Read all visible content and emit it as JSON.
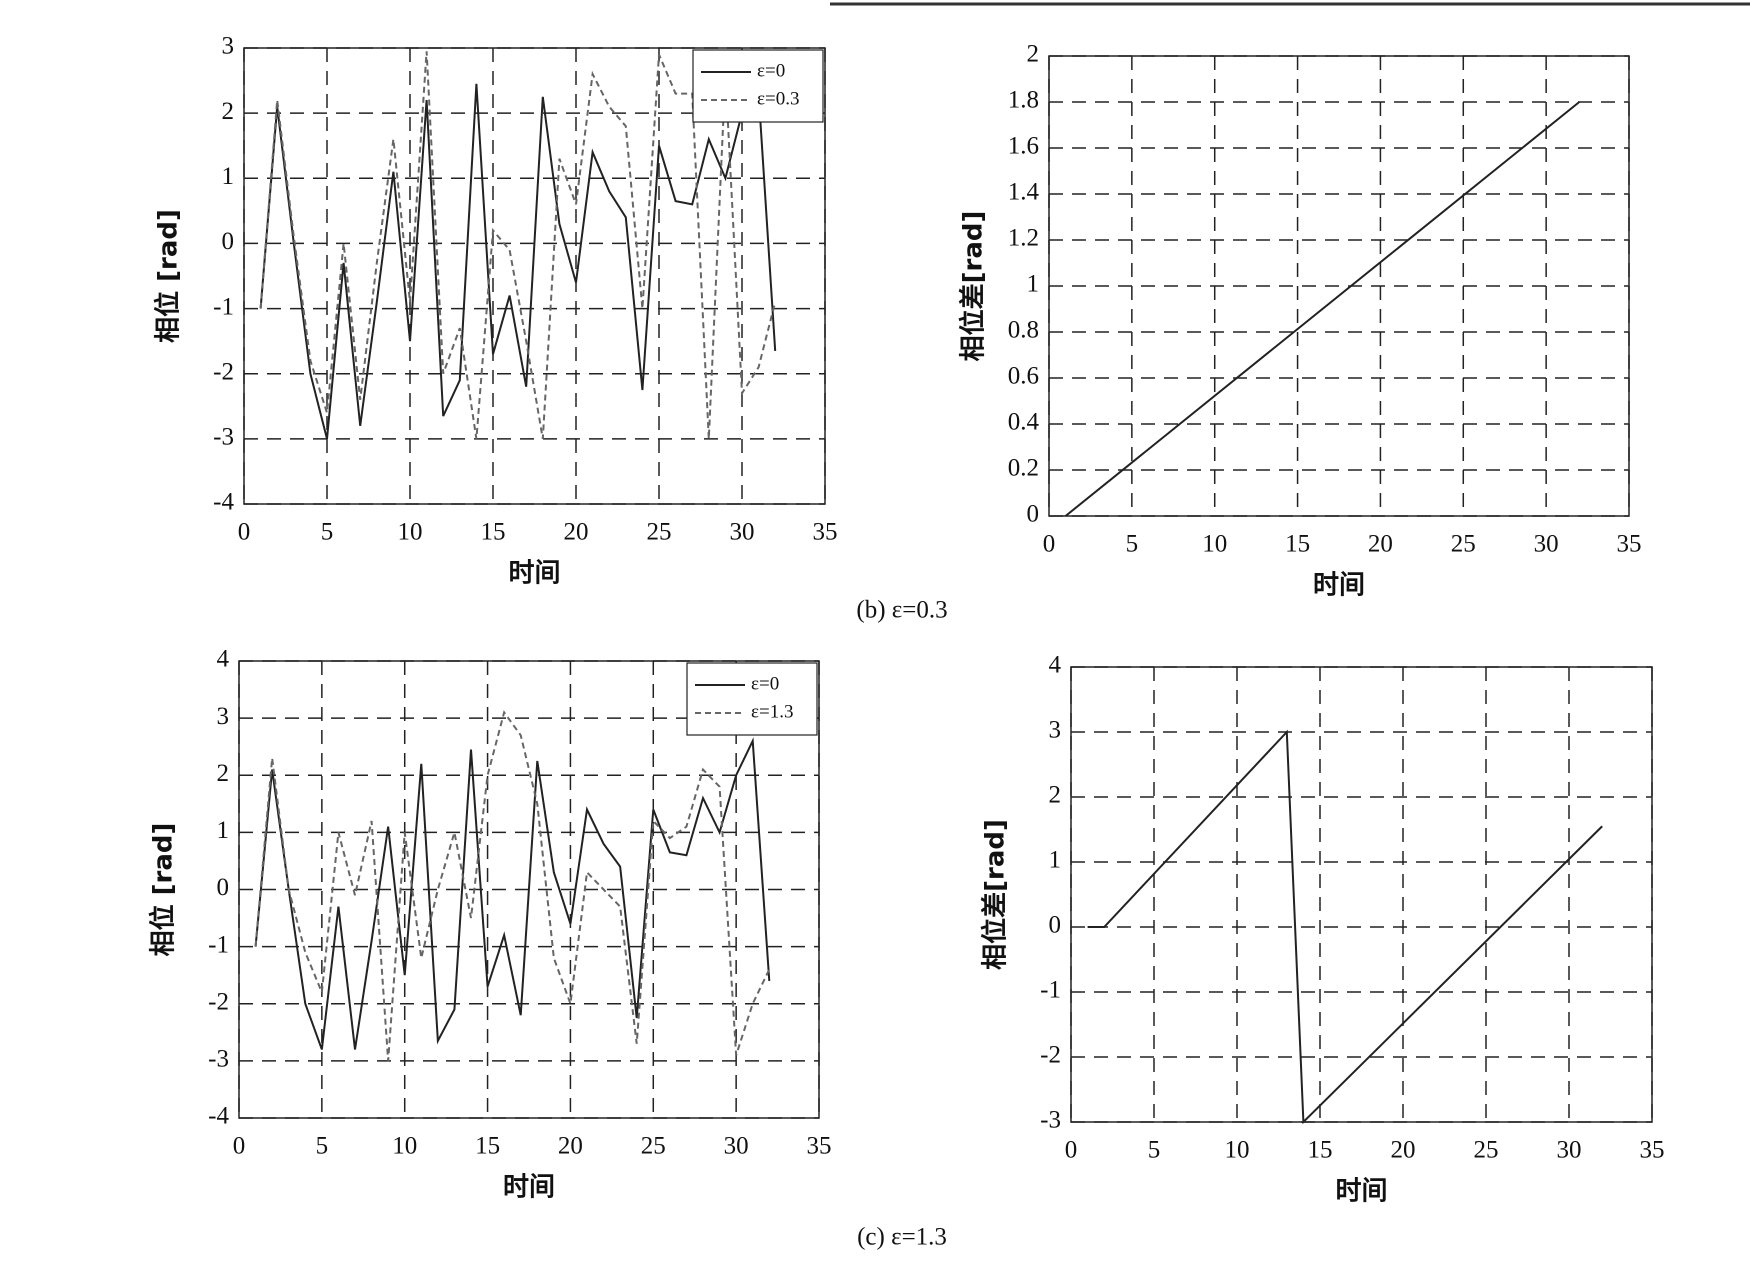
{
  "chart_data": [
    {
      "type": "line",
      "xlabel": "时间",
      "ylabel": "相位 [rad]",
      "xlim": [
        0,
        35
      ],
      "ylim": [
        -4,
        3
      ],
      "xticks": [
        0,
        5,
        10,
        15,
        20,
        25,
        30,
        35
      ],
      "yticks": [
        -4,
        -3,
        -2,
        -1,
        0,
        1,
        2,
        3
      ],
      "grid": true,
      "legend": "upper right",
      "x": [
        1,
        2,
        3,
        4,
        5,
        6,
        7,
        8,
        9,
        10,
        11,
        12,
        13,
        14,
        15,
        16,
        17,
        18,
        19,
        20,
        21,
        22,
        23,
        24,
        25,
        26,
        27,
        28,
        29,
        30,
        31,
        32
      ],
      "series": [
        {
          "name": "ε=0",
          "color": "#222222",
          "linestyle": "solid",
          "values": [
            -1.0,
            2.1,
            0.0,
            -2.0,
            -3.0,
            -0.3,
            -2.8,
            -0.9,
            1.1,
            -1.5,
            2.2,
            -2.65,
            -2.1,
            2.45,
            -1.7,
            -0.8,
            -2.2,
            2.25,
            0.3,
            -0.6,
            1.4,
            0.8,
            0.4,
            -2.25,
            1.5,
            0.65,
            0.6,
            1.6,
            1.0,
            2.0,
            2.3,
            -1.65
          ]
        },
        {
          "name": "ε=0.3",
          "color": "#666666",
          "linestyle": "dashed",
          "values": [
            -1.0,
            2.2,
            0.1,
            -1.8,
            -2.6,
            0.0,
            -2.4,
            -0.3,
            1.6,
            -0.9,
            2.95,
            -2.0,
            -1.3,
            -3.0,
            0.2,
            -0.1,
            -1.5,
            -3.0,
            1.3,
            0.6,
            2.6,
            2.1,
            1.8,
            -1.0,
            2.9,
            2.3,
            2.3,
            -3.0,
            2.6,
            -2.3,
            -1.9,
            -0.9
          ]
        }
      ]
    },
    {
      "type": "line",
      "xlabel": "时间",
      "ylabel": "相位差[rad]",
      "xlim": [
        0,
        35
      ],
      "ylim": [
        0,
        2
      ],
      "xticks": [
        0,
        5,
        10,
        15,
        20,
        25,
        30,
        35
      ],
      "yticks": [
        0,
        0.2,
        0.4,
        0.6,
        0.8,
        1,
        1.2,
        1.4,
        1.6,
        1.8,
        2
      ],
      "grid": true,
      "x": [
        1,
        32
      ],
      "color": "#222222",
      "values": [
        0,
        1.8
      ]
    },
    {
      "type": "line",
      "xlabel": "时间",
      "ylabel": "相位 [rad]",
      "xlim": [
        0,
        35
      ],
      "ylim": [
        -4,
        4
      ],
      "xticks": [
        0,
        5,
        10,
        15,
        20,
        25,
        30,
        35
      ],
      "yticks": [
        -4,
        -3,
        -2,
        -1,
        0,
        1,
        2,
        3,
        4
      ],
      "grid": true,
      "legend": "upper right",
      "x": [
        1,
        2,
        3,
        4,
        5,
        6,
        7,
        8,
        9,
        10,
        11,
        12,
        13,
        14,
        15,
        16,
        17,
        18,
        19,
        20,
        21,
        22,
        23,
        24,
        25,
        26,
        27,
        28,
        29,
        30,
        31,
        32
      ],
      "series": [
        {
          "name": "ε=0",
          "color": "#222222",
          "linestyle": "solid",
          "values": [
            -1.0,
            2.1,
            0.0,
            -2.0,
            -2.8,
            -0.3,
            -2.8,
            -0.9,
            1.1,
            -1.5,
            2.2,
            -2.65,
            -2.1,
            2.45,
            -1.7,
            -0.8,
            -2.2,
            2.25,
            0.3,
            -0.6,
            1.4,
            0.8,
            0.4,
            -2.25,
            1.4,
            0.65,
            0.6,
            1.6,
            1.0,
            2.0,
            2.6,
            -1.6
          ]
        },
        {
          "name": "ε=1.3",
          "color": "#666666",
          "linestyle": "dashed",
          "values": [
            -1.0,
            2.3,
            0.0,
            -1.1,
            -1.8,
            1.0,
            -0.1,
            1.2,
            -3.0,
            1.0,
            -1.2,
            0.0,
            1.0,
            -0.5,
            2.0,
            3.1,
            2.7,
            1.5,
            -1.2,
            -2.0,
            0.3,
            0.0,
            -0.3,
            -2.7,
            1.2,
            0.9,
            1.1,
            2.1,
            1.8,
            -2.9,
            -2.0,
            -1.4
          ]
        }
      ]
    },
    {
      "type": "line",
      "xlabel": "时间",
      "ylabel": "相位差[rad]",
      "xlim": [
        0,
        35
      ],
      "ylim": [
        -3,
        4
      ],
      "xticks": [
        0,
        5,
        10,
        15,
        20,
        25,
        30,
        35
      ],
      "yticks": [
        -3,
        -2,
        -1,
        0,
        1,
        2,
        3,
        4
      ],
      "grid": true,
      "x": [
        1,
        2,
        13,
        14,
        32
      ],
      "color": "#222222",
      "values": [
        0,
        0,
        3.0,
        -3.0,
        1.55
      ]
    }
  ],
  "captions": [
    "(b) ε=0.3",
    "(c) ε=1.3"
  ]
}
